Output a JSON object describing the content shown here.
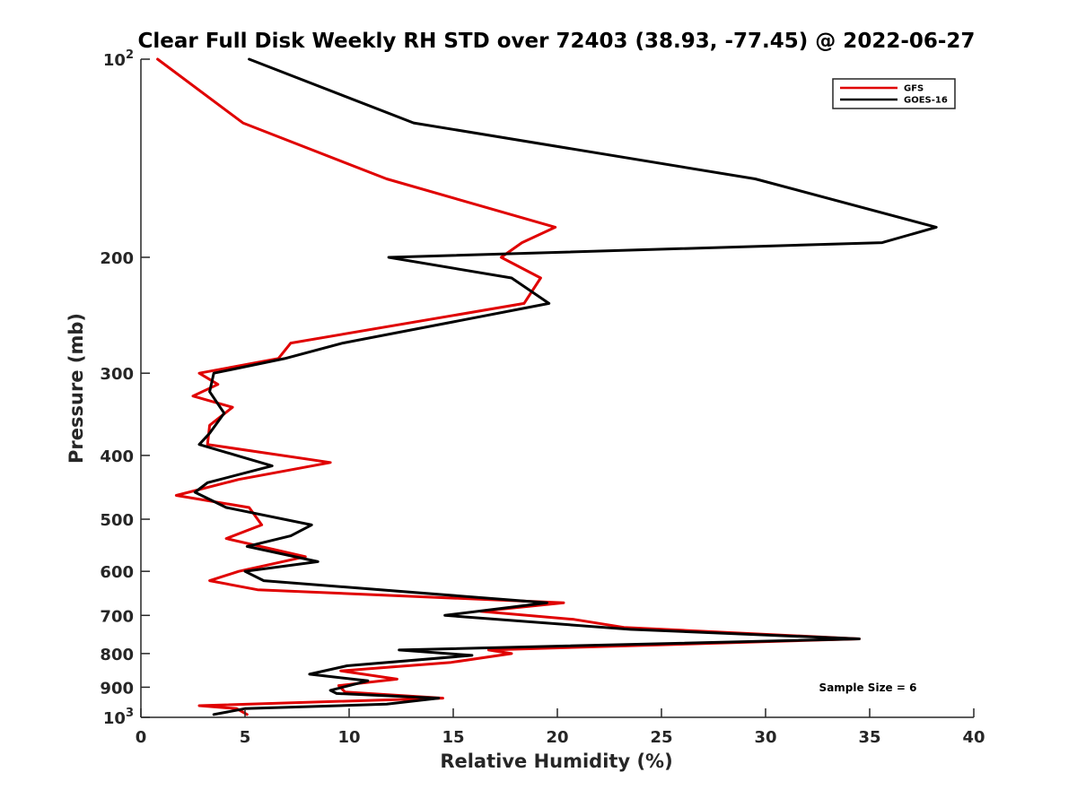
{
  "chart_data": {
    "type": "line",
    "title": "Clear Full Disk Weekly RH STD over 72403 (38.93, -77.45) @ 2022-06-27",
    "xlabel": "Relative Humidity (%)",
    "ylabel": "Pressure (mb)",
    "xlim": [
      0,
      40
    ],
    "ylim": [
      100,
      1000
    ],
    "yscale": "log",
    "yreversed": true,
    "grid": false,
    "x_ticks": [
      0,
      5,
      10,
      15,
      20,
      25,
      30,
      35,
      40
    ],
    "x_tick_labels": [
      "0",
      "5",
      "10",
      "15",
      "20",
      "25",
      "30",
      "35",
      "40"
    ],
    "y_ticks": [
      100,
      200,
      300,
      400,
      500,
      600,
      700,
      800,
      900,
      1000
    ],
    "y_tick_labels": [
      {
        "base": "10",
        "exp": "2"
      },
      {
        "base": "200"
      },
      {
        "base": "300"
      },
      {
        "base": "400"
      },
      {
        "base": "500"
      },
      {
        "base": "600"
      },
      {
        "base": "700"
      },
      {
        "base": "800"
      },
      {
        "base": "900"
      },
      {
        "base": "10",
        "exp": "3"
      }
    ],
    "legend_position": "top-right",
    "annotation": "Sample Size = 6",
    "series": [
      {
        "name": "GFS",
        "color": "#e00000",
        "points": [
          [
            0.8,
            100
          ],
          [
            4.9,
            125
          ],
          [
            11.8,
            152
          ],
          [
            19.9,
            180
          ],
          [
            18.3,
            190
          ],
          [
            17.3,
            200
          ],
          [
            19.2,
            215
          ],
          [
            18.4,
            235
          ],
          [
            7.2,
            270
          ],
          [
            6.6,
            285
          ],
          [
            2.8,
            300
          ],
          [
            3.7,
            312
          ],
          [
            2.5,
            325
          ],
          [
            4.4,
            338
          ],
          [
            3.3,
            360
          ],
          [
            3.2,
            385
          ],
          [
            9.1,
            410
          ],
          [
            4.7,
            435
          ],
          [
            1.7,
            460
          ],
          [
            5.2,
            480
          ],
          [
            5.8,
            510
          ],
          [
            4.1,
            535
          ],
          [
            7.9,
            570
          ],
          [
            4.7,
            600
          ],
          [
            3.3,
            620
          ],
          [
            5.6,
            640
          ],
          [
            20.3,
            670
          ],
          [
            16.3,
            690
          ],
          [
            20.8,
            710
          ],
          [
            23.2,
            730
          ],
          [
            34.5,
            760
          ],
          [
            16.7,
            790
          ],
          [
            17.8,
            800
          ],
          [
            14.9,
            825
          ],
          [
            9.6,
            850
          ],
          [
            12.3,
            875
          ],
          [
            9.5,
            895
          ],
          [
            9.8,
            915
          ],
          [
            14.5,
            935
          ],
          [
            2.8,
            960
          ],
          [
            4.6,
            970
          ],
          [
            5.1,
            990
          ]
        ]
      },
      {
        "name": "GOES-16",
        "color": "#000000",
        "points": [
          [
            5.2,
            100
          ],
          [
            13.1,
            125
          ],
          [
            29.5,
            152
          ],
          [
            38.2,
            180
          ],
          [
            35.6,
            190
          ],
          [
            11.9,
            200
          ],
          [
            17.8,
            215
          ],
          [
            19.6,
            235
          ],
          [
            9.7,
            270
          ],
          [
            6.9,
            285
          ],
          [
            3.5,
            300
          ],
          [
            3.3,
            320
          ],
          [
            4.0,
            345
          ],
          [
            3.3,
            370
          ],
          [
            2.8,
            385
          ],
          [
            6.3,
            415
          ],
          [
            3.2,
            440
          ],
          [
            2.6,
            455
          ],
          [
            4.1,
            480
          ],
          [
            8.2,
            510
          ],
          [
            7.2,
            530
          ],
          [
            5.1,
            550
          ],
          [
            8.5,
            580
          ],
          [
            5.0,
            600
          ],
          [
            5.9,
            620
          ],
          [
            19.5,
            670
          ],
          [
            14.6,
            700
          ],
          [
            23.5,
            735
          ],
          [
            34.5,
            760
          ],
          [
            12.4,
            790
          ],
          [
            15.9,
            805
          ],
          [
            9.9,
            835
          ],
          [
            8.1,
            860
          ],
          [
            10.9,
            880
          ],
          [
            9.1,
            910
          ],
          [
            9.4,
            920
          ],
          [
            14.3,
            935
          ],
          [
            11.8,
            955
          ],
          [
            5.0,
            970
          ],
          [
            3.5,
            990
          ]
        ]
      }
    ]
  }
}
